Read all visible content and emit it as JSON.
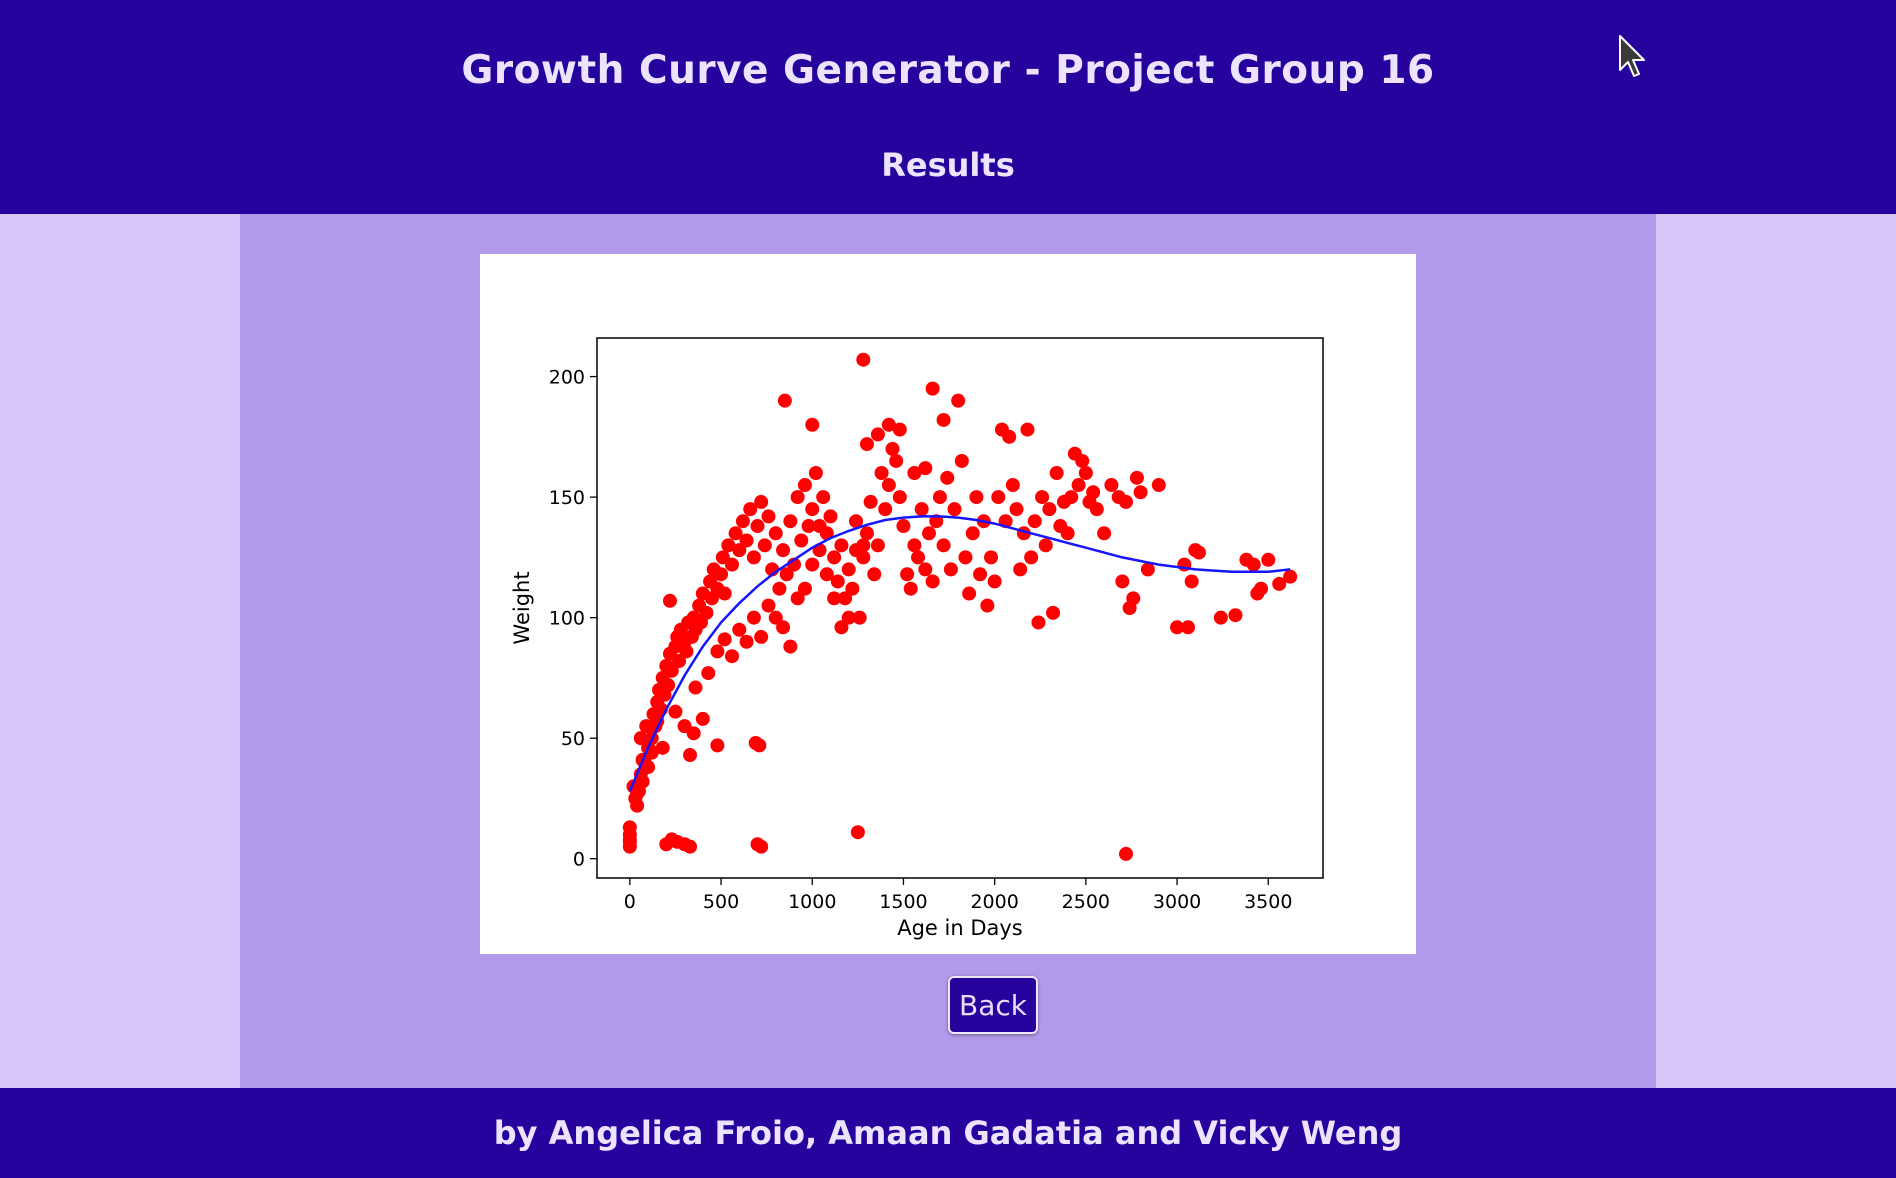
{
  "header": {
    "title": "Growth Curve Generator - Project Group 16",
    "subtitle": "Results",
    "cursor_icon": "mouse-pointer-icon"
  },
  "main": {
    "back_label": "Back"
  },
  "footer": {
    "credits": "by Angelica Froio, Amaan Gadatia and Vicky Weng"
  },
  "colors": {
    "header_bg": "#27039e",
    "main_bg": "#b19aea",
    "side_bg": "#d6c6f8",
    "points": "#ff0000",
    "curve": "#1515ff"
  },
  "chart_data": {
    "type": "scatter",
    "title": "",
    "xlabel": "Age in Days",
    "ylabel": "Weight",
    "xlim": [
      -180,
      3800
    ],
    "ylim": [
      -8,
      216
    ],
    "xticks": [
      0,
      500,
      1000,
      1500,
      2000,
      2500,
      3000,
      3500
    ],
    "yticks": [
      0,
      50,
      100,
      150,
      200
    ],
    "grid": false,
    "legend": "none",
    "series": [
      {
        "type": "scatter",
        "color": "#ff0000",
        "points": [
          [
            0,
            5
          ],
          [
            0,
            8
          ],
          [
            0,
            10
          ],
          [
            0,
            13
          ],
          [
            0,
            7
          ],
          [
            200,
            6
          ],
          [
            230,
            8
          ],
          [
            260,
            7
          ],
          [
            300,
            6
          ],
          [
            330,
            5
          ],
          [
            700,
            6
          ],
          [
            720,
            5
          ],
          [
            1250,
            11
          ],
          [
            2720,
            2
          ],
          [
            20,
            30
          ],
          [
            30,
            25
          ],
          [
            40,
            22
          ],
          [
            50,
            28
          ],
          [
            60,
            35
          ],
          [
            70,
            32
          ],
          [
            80,
            40
          ],
          [
            100,
            38
          ],
          [
            110,
            45
          ],
          [
            120,
            50
          ],
          [
            90,
            55
          ],
          [
            130,
            60
          ],
          [
            140,
            55
          ],
          [
            150,
            65
          ],
          [
            160,
            70
          ],
          [
            170,
            62
          ],
          [
            180,
            75
          ],
          [
            190,
            68
          ],
          [
            200,
            80
          ],
          [
            210,
            72
          ],
          [
            220,
            85
          ],
          [
            230,
            78
          ],
          [
            250,
            88
          ],
          [
            260,
            92
          ],
          [
            270,
            82
          ],
          [
            280,
            95
          ],
          [
            300,
            90
          ],
          [
            310,
            86
          ],
          [
            320,
            98
          ],
          [
            340,
            92
          ],
          [
            350,
            100
          ],
          [
            360,
            95
          ],
          [
            380,
            105
          ],
          [
            390,
            98
          ],
          [
            400,
            110
          ],
          [
            420,
            102
          ],
          [
            440,
            115
          ],
          [
            450,
            108
          ],
          [
            460,
            120
          ],
          [
            480,
            112
          ],
          [
            500,
            118
          ],
          [
            510,
            125
          ],
          [
            520,
            110
          ],
          [
            540,
            130
          ],
          [
            560,
            122
          ],
          [
            580,
            135
          ],
          [
            600,
            128
          ],
          [
            620,
            140
          ],
          [
            640,
            132
          ],
          [
            660,
            145
          ],
          [
            680,
            125
          ],
          [
            700,
            138
          ],
          [
            720,
            148
          ],
          [
            740,
            130
          ],
          [
            760,
            142
          ],
          [
            780,
            120
          ],
          [
            800,
            135
          ],
          [
            820,
            112
          ],
          [
            840,
            128
          ],
          [
            860,
            118
          ],
          [
            880,
            140
          ],
          [
            900,
            122
          ],
          [
            920,
            150
          ],
          [
            940,
            132
          ],
          [
            960,
            155
          ],
          [
            980,
            138
          ],
          [
            1000,
            145
          ],
          [
            1020,
            160
          ],
          [
            1040,
            128
          ],
          [
            1060,
            150
          ],
          [
            1080,
            135
          ],
          [
            1100,
            142
          ],
          [
            1120,
            125
          ],
          [
            1140,
            115
          ],
          [
            1160,
            130
          ],
          [
            1180,
            108
          ],
          [
            1200,
            120
          ],
          [
            1220,
            112
          ],
          [
            1240,
            140
          ],
          [
            1260,
            100
          ],
          [
            1280,
            125
          ],
          [
            1300,
            135
          ],
          [
            1320,
            148
          ],
          [
            1340,
            118
          ],
          [
            1360,
            130
          ],
          [
            1380,
            160
          ],
          [
            1400,
            145
          ],
          [
            1420,
            155
          ],
          [
            1440,
            170
          ],
          [
            1460,
            165
          ],
          [
            1480,
            150
          ],
          [
            1500,
            138
          ],
          [
            1520,
            118
          ],
          [
            1540,
            112
          ],
          [
            1560,
            130
          ],
          [
            1580,
            125
          ],
          [
            1600,
            145
          ],
          [
            1620,
            120
          ],
          [
            1640,
            135
          ],
          [
            1660,
            115
          ],
          [
            1680,
            140
          ],
          [
            1700,
            150
          ],
          [
            1720,
            130
          ],
          [
            1740,
            158
          ],
          [
            1760,
            120
          ],
          [
            1780,
            145
          ],
          [
            1800,
            190
          ],
          [
            1820,
            165
          ],
          [
            1840,
            125
          ],
          [
            1860,
            110
          ],
          [
            1880,
            135
          ],
          [
            1900,
            150
          ],
          [
            1920,
            118
          ],
          [
            1940,
            140
          ],
          [
            1960,
            105
          ],
          [
            1980,
            125
          ],
          [
            2000,
            115
          ],
          [
            2020,
            150
          ],
          [
            2040,
            178
          ],
          [
            2060,
            140
          ],
          [
            2080,
            175
          ],
          [
            2100,
            155
          ],
          [
            2120,
            145
          ],
          [
            2140,
            120
          ],
          [
            2160,
            135
          ],
          [
            2180,
            178
          ],
          [
            2200,
            125
          ],
          [
            2220,
            140
          ],
          [
            2240,
            98
          ],
          [
            2260,
            150
          ],
          [
            2280,
            130
          ],
          [
            2300,
            145
          ],
          [
            2320,
            102
          ],
          [
            2340,
            160
          ],
          [
            2360,
            138
          ],
          [
            2380,
            148
          ],
          [
            2400,
            135
          ],
          [
            2420,
            150
          ],
          [
            2440,
            168
          ],
          [
            2460,
            155
          ],
          [
            2480,
            165
          ],
          [
            2500,
            160
          ],
          [
            2520,
            148
          ],
          [
            2540,
            152
          ],
          [
            2560,
            145
          ],
          [
            2600,
            135
          ],
          [
            2640,
            155
          ],
          [
            2680,
            150
          ],
          [
            2700,
            115
          ],
          [
            2720,
            148
          ],
          [
            2740,
            104
          ],
          [
            2760,
            108
          ],
          [
            2780,
            158
          ],
          [
            2800,
            152
          ],
          [
            2840,
            120
          ],
          [
            2900,
            155
          ],
          [
            3000,
            96
          ],
          [
            3040,
            122
          ],
          [
            3060,
            96
          ],
          [
            3080,
            115
          ],
          [
            3100,
            128
          ],
          [
            3120,
            127
          ],
          [
            3240,
            100
          ],
          [
            3320,
            101
          ],
          [
            3380,
            124
          ],
          [
            3420,
            122
          ],
          [
            3440,
            110
          ],
          [
            3460,
            112
          ],
          [
            3500,
            124
          ],
          [
            3560,
            114
          ],
          [
            3620,
            117
          ],
          [
            40,
            27
          ],
          [
            70,
            41
          ],
          [
            100,
            46
          ],
          [
            60,
            50
          ],
          [
            150,
            57
          ],
          [
            180,
            46
          ],
          [
            120,
            44
          ],
          [
            330,
            43
          ],
          [
            350,
            52
          ],
          [
            300,
            55
          ],
          [
            400,
            58
          ],
          [
            250,
            61
          ],
          [
            360,
            71
          ],
          [
            430,
            77
          ],
          [
            480,
            86
          ],
          [
            520,
            91
          ],
          [
            560,
            84
          ],
          [
            600,
            95
          ],
          [
            640,
            90
          ],
          [
            680,
            100
          ],
          [
            720,
            92
          ],
          [
            760,
            105
          ],
          [
            800,
            100
          ],
          [
            840,
            96
          ],
          [
            880,
            88
          ],
          [
            920,
            108
          ],
          [
            960,
            112
          ],
          [
            1000,
            122
          ],
          [
            1040,
            138
          ],
          [
            1080,
            118
          ],
          [
            1120,
            108
          ],
          [
            1160,
            96
          ],
          [
            1200,
            100
          ],
          [
            1240,
            128
          ],
          [
            1280,
            130
          ],
          [
            690,
            48
          ],
          [
            710,
            47
          ],
          [
            480,
            47
          ],
          [
            220,
            107
          ],
          [
            850,
            190
          ],
          [
            1000,
            180
          ],
          [
            1280,
            207
          ],
          [
            1660,
            195
          ],
          [
            1720,
            182
          ],
          [
            1620,
            162
          ],
          [
            1560,
            160
          ],
          [
            1480,
            178
          ],
          [
            1420,
            180
          ],
          [
            1360,
            176
          ],
          [
            1300,
            172
          ]
        ]
      },
      {
        "type": "line",
        "color": "#1515ff",
        "x": [
          0,
          100,
          200,
          300,
          400,
          500,
          600,
          700,
          800,
          900,
          1000,
          1100,
          1200,
          1300,
          1400,
          1500,
          1600,
          1700,
          1800,
          1900,
          2000,
          2100,
          2200,
          2300,
          2400,
          2500,
          2600,
          2700,
          2800,
          2900,
          3000,
          3100,
          3200,
          3300,
          3400,
          3500,
          3620
        ],
        "y": [
          28,
          46,
          62,
          76,
          88,
          98,
          106,
          113,
          119,
          124,
          129,
          133,
          136,
          138.5,
          140.5,
          141.5,
          142,
          142,
          141.5,
          140.5,
          139,
          137,
          135,
          133,
          131,
          129,
          127,
          125,
          123.5,
          122,
          121,
          120,
          119.5,
          119,
          119,
          119,
          120
        ]
      }
    ]
  }
}
